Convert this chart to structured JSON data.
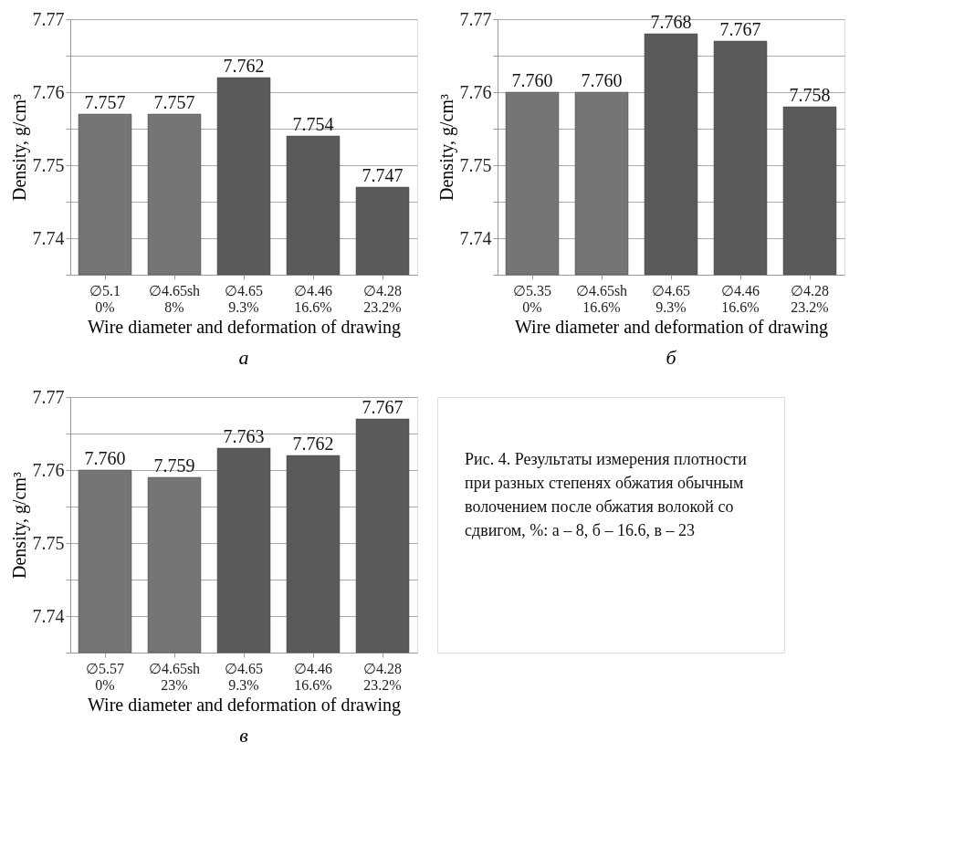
{
  "chart_data": [
    {
      "type": "bar",
      "title": "а",
      "xlabel": "Wire diameter and deformation of drawing",
      "ylabel": "Density, g/cm³",
      "categories": [
        "∅5.1\n0%",
        "∅4.65sh\n8%",
        "∅4.65\n9.3%",
        "∅4.46\n16.6%",
        "∅4.28\n23.2%"
      ],
      "values": [
        7.757,
        7.757,
        7.762,
        7.754,
        7.747
      ],
      "value_labels": [
        "7.757",
        "7.757",
        "7.762",
        "7.754",
        "7.747"
      ],
      "colors": [
        "#757575",
        "#757575",
        "#5a5a5a",
        "#5a5a5a",
        "#5a5a5a"
      ],
      "ylim": [
        7.735,
        7.77
      ],
      "yticks": [
        {
          "value": 7.735,
          "label": null
        },
        7.74,
        {
          "value": 7.745,
          "label": null
        },
        7.75,
        {
          "value": 7.755,
          "label": null
        },
        7.76,
        {
          "value": 7.765,
          "label": null
        },
        7.77
      ],
      "grid": "y"
    },
    {
      "type": "bar",
      "title": "б",
      "xlabel": "Wire diameter and deformation of drawing",
      "ylabel": "Density, g/cm³",
      "categories": [
        "∅5.35\n0%",
        "∅4.65sh\n16.6%",
        "∅4.65\n9.3%",
        "∅4.46\n16.6%",
        "∅4.28\n23.2%"
      ],
      "values": [
        7.76,
        7.76,
        7.768,
        7.767,
        7.758
      ],
      "value_labels": [
        "7.760",
        "7.760",
        "7.768",
        "7.767",
        "7.758"
      ],
      "colors": [
        "#757575",
        "#757575",
        "#5a5a5a",
        "#5a5a5a",
        "#5a5a5a"
      ],
      "ylim": [
        7.735,
        7.77
      ],
      "yticks": [
        {
          "value": 7.735,
          "label": null
        },
        7.74,
        {
          "value": 7.745,
          "label": null
        },
        7.75,
        {
          "value": 7.755,
          "label": null
        },
        7.76,
        {
          "value": 7.765,
          "label": null
        },
        7.77
      ],
      "grid": "y"
    },
    {
      "type": "bar",
      "title": "в",
      "xlabel": "Wire diameter and deformation of drawing",
      "ylabel": "Density, g/cm³",
      "categories": [
        "∅5.57\n0%",
        "∅4.65sh\n23%",
        "∅4.65\n9.3%",
        "∅4.46\n16.6%",
        "∅4.28\n23.2%"
      ],
      "values": [
        7.76,
        7.759,
        7.763,
        7.762,
        7.767
      ],
      "value_labels": [
        "7.760",
        "7.759",
        "7.763",
        "7.762",
        "7.767"
      ],
      "colors": [
        "#757575",
        "#757575",
        "#5a5a5a",
        "#5a5a5a",
        "#5a5a5a"
      ],
      "ylim": [
        7.735,
        7.77
      ],
      "yticks": [
        {
          "value": 7.735,
          "label": null
        },
        7.74,
        {
          "value": 7.745,
          "label": null
        },
        7.75,
        {
          "value": 7.755,
          "label": null
        },
        7.76,
        {
          "value": 7.765,
          "label": null
        },
        7.77
      ],
      "grid": "y"
    },
    {
      "type": "other",
      "annotations": [
        "Рис. 4. Результаты измерения плотности при разных степенях обжатия обычным волочением после обжатия волокой со сдвигом, %: а – 8, б – 16.6, в – 23"
      ]
    }
  ]
}
